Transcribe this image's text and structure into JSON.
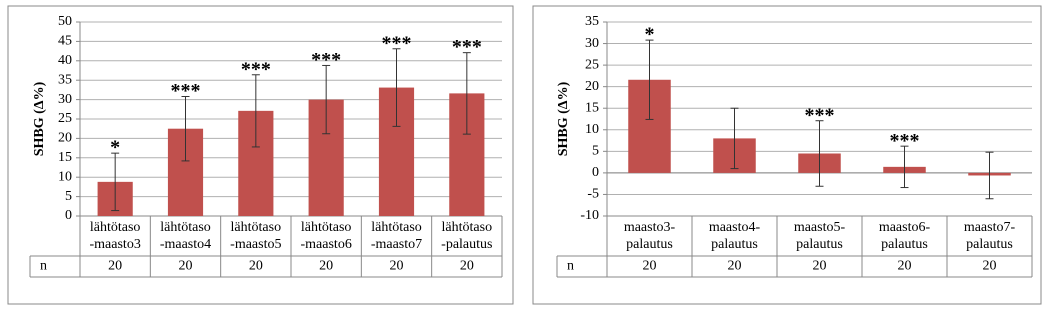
{
  "chart_data": [
    {
      "type": "bar",
      "y_label": "SHBG (Δ%)",
      "color": "#c0504d",
      "grid": true,
      "categories": [
        "lähtötaso -maasto3",
        "lähtötaso -maasto4",
        "lähtötaso -maasto5",
        "lähtötaso -maasto6",
        "lähtötaso -maasto7",
        "lähtötaso -palautus"
      ],
      "values": [
        8.8,
        22.5,
        27.1,
        30,
        33.1,
        31.6
      ],
      "errors": [
        7.4,
        8.3,
        9.3,
        8.8,
        10,
        10.5
      ],
      "significance": [
        "*",
        "***",
        "***",
        "***",
        "***",
        "***"
      ],
      "n_label": "n",
      "n": [
        20,
        20,
        20,
        20,
        20,
        20
      ],
      "ylim": [
        0,
        50
      ],
      "yticks": [
        0,
        5,
        10,
        15,
        20,
        25,
        30,
        35,
        40,
        45,
        50
      ]
    },
    {
      "type": "bar",
      "y_label": "SHBG (Δ%)",
      "color": "#c0504d",
      "grid": true,
      "categories": [
        "maasto3-palautus",
        "maasto4-palautus",
        "maasto5-palautus",
        "maasto6-palautus",
        "maasto7-palautus"
      ],
      "values": [
        21.6,
        8,
        4.5,
        1.4,
        -0.6
      ],
      "errors": [
        9.2,
        7,
        7.6,
        4.8,
        5.4
      ],
      "significance": [
        "*",
        null,
        "***",
        "***",
        null
      ],
      "n_label": "n",
      "n": [
        20,
        20,
        20,
        20,
        20
      ],
      "ylim": [
        -10,
        35
      ],
      "yticks": [
        -10,
        -5,
        0,
        5,
        10,
        15,
        20,
        25,
        30,
        35
      ]
    }
  ]
}
